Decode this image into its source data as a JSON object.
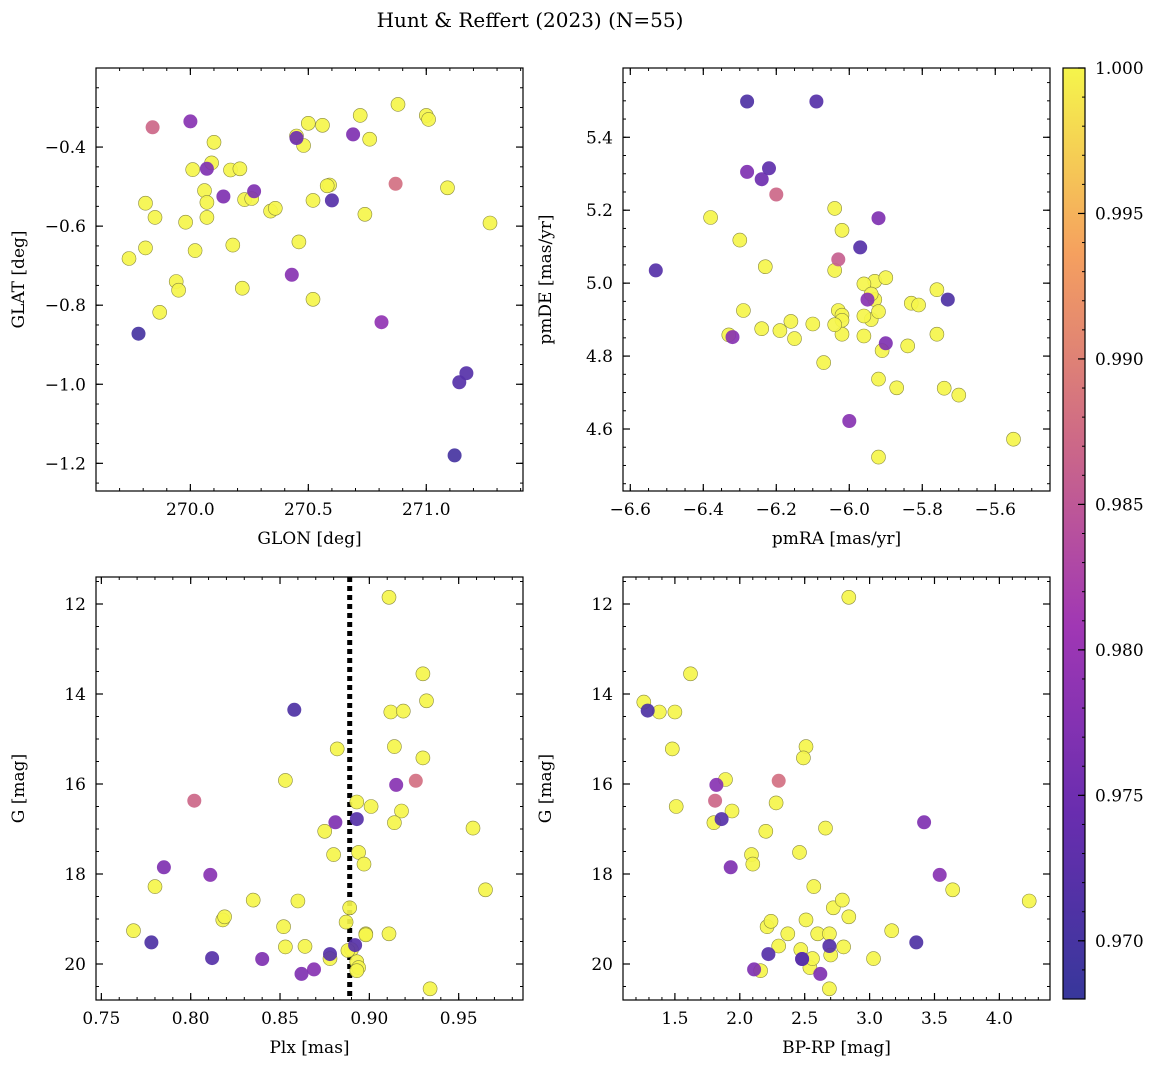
{
  "title": "Hunt & Reffert (2023) (N=55)",
  "colorbar": {
    "min": 0.968,
    "max": 1.0,
    "ticks": [
      0.97,
      0.975,
      0.98,
      0.985,
      0.99,
      0.995,
      1.0
    ],
    "tick_labels": [
      "0.970",
      "0.975",
      "0.980",
      "0.985",
      "0.990",
      "0.995",
      "1.000"
    ],
    "colormap": "plasma"
  },
  "chart_data": [
    {
      "id": "glon-glat",
      "type": "scatter",
      "xlabel": "GLON [deg]",
      "ylabel": "GLAT [deg]",
      "xlim": [
        269.6,
        271.41
      ],
      "ylim": [
        -1.27,
        -0.2
      ],
      "yinvert": false,
      "xticks": [
        270.0,
        270.5,
        271.0
      ],
      "xtick_labels": [
        "270.0",
        "270.5",
        "271.0"
      ],
      "yticks": [
        -1.2,
        -1.0,
        -0.8,
        -0.6,
        -0.4
      ],
      "ytick_labels": [
        "−1.2",
        "−1.0",
        "−0.8",
        "−0.6",
        "−0.4"
      ],
      "x_minor": 0.1,
      "y_minor": 0.05,
      "points": [
        [
          269.84,
          -0.35,
          0.987
        ],
        [
          270.0,
          -0.335,
          0.978
        ],
        [
          270.07,
          -0.455,
          0.977
        ],
        [
          270.14,
          -0.525,
          0.977
        ],
        [
          270.27,
          -0.512,
          0.977
        ],
        [
          270.45,
          -0.377,
          0.975
        ],
        [
          270.6,
          -0.535,
          0.972
        ],
        [
          270.69,
          -0.368,
          0.977
        ],
        [
          270.87,
          -0.493,
          0.988
        ],
        [
          269.78,
          -0.872,
          0.97
        ],
        [
          270.43,
          -0.723,
          0.978
        ],
        [
          270.81,
          -0.843,
          0.979
        ],
        [
          271.12,
          -1.18,
          0.97
        ],
        [
          271.14,
          -0.995,
          0.972
        ],
        [
          271.17,
          -0.972,
          0.972
        ],
        [
          269.74,
          -0.682,
          1.0
        ],
        [
          269.81,
          -0.655,
          1.0
        ],
        [
          269.81,
          -0.542,
          1.0
        ],
        [
          269.85,
          -0.578,
          1.0
        ],
        [
          269.87,
          -0.818,
          1.0
        ],
        [
          269.94,
          -0.74,
          1.0
        ],
        [
          269.95,
          -0.762,
          1.0
        ],
        [
          269.98,
          -0.59,
          1.0
        ],
        [
          270.01,
          -0.457,
          1.0
        ],
        [
          270.02,
          -0.662,
          1.0
        ],
        [
          270.06,
          -0.51,
          1.0
        ],
        [
          270.07,
          -0.54,
          1.0
        ],
        [
          270.07,
          -0.578,
          1.0
        ],
        [
          270.09,
          -0.44,
          1.0
        ],
        [
          270.1,
          -0.388,
          1.0
        ],
        [
          270.17,
          -0.458,
          1.0
        ],
        [
          270.18,
          -0.648,
          1.0
        ],
        [
          270.21,
          -0.455,
          1.0
        ],
        [
          270.22,
          -0.757,
          1.0
        ],
        [
          270.23,
          -0.533,
          1.0
        ],
        [
          270.26,
          -0.53,
          1.0
        ],
        [
          270.34,
          -0.562,
          1.0
        ],
        [
          270.36,
          -0.555,
          1.0
        ],
        [
          270.45,
          -0.372,
          1.0
        ],
        [
          270.46,
          -0.64,
          1.0
        ],
        [
          270.48,
          -0.396,
          1.0
        ],
        [
          270.5,
          -0.34,
          1.0
        ],
        [
          270.52,
          -0.535,
          1.0
        ],
        [
          270.52,
          -0.785,
          1.0
        ],
        [
          270.56,
          -0.345,
          1.0
        ],
        [
          270.59,
          -0.496,
          1.0
        ],
        [
          270.72,
          -0.32,
          1.0
        ],
        [
          270.74,
          -0.57,
          1.0
        ],
        [
          270.76,
          -0.38,
          1.0
        ],
        [
          270.88,
          -0.292,
          1.0
        ],
        [
          271.0,
          -0.32,
          1.0
        ],
        [
          271.01,
          -0.33,
          1.0
        ],
        [
          271.09,
          -0.503,
          1.0
        ],
        [
          271.27,
          -0.592,
          1.0
        ],
        [
          270.58,
          -0.498,
          1.0
        ]
      ]
    },
    {
      "id": "pm",
      "type": "scatter",
      "xlabel": "pmRA [mas/yr]",
      "ylabel": "pmDE [mas/yr]",
      "xlim": [
        -6.62,
        -5.45
      ],
      "ylim": [
        4.43,
        5.59
      ],
      "yinvert": false,
      "xticks": [
        -6.6,
        -6.4,
        -6.2,
        -6.0,
        -5.8,
        -5.6
      ],
      "xtick_labels": [
        "−6.6",
        "−6.4",
        "−6.2",
        "−6.0",
        "−5.8",
        "−5.6"
      ],
      "yticks": [
        4.6,
        4.8,
        5.0,
        5.2,
        5.4
      ],
      "ytick_labels": [
        "4.6",
        "4.8",
        "5.0",
        "5.2",
        "5.4"
      ],
      "x_minor": 0.05,
      "y_minor": 0.05,
      "points": [
        [
          -6.28,
          5.498,
          0.971
        ],
        [
          -6.09,
          5.498,
          0.972
        ],
        [
          -6.22,
          5.315,
          0.973
        ],
        [
          -6.28,
          5.305,
          0.977
        ],
        [
          -6.24,
          5.285,
          0.975
        ],
        [
          -6.2,
          5.243,
          0.987
        ],
        [
          -5.92,
          5.178,
          0.977
        ],
        [
          -5.97,
          5.098,
          0.972
        ],
        [
          -6.03,
          5.065,
          0.986
        ],
        [
          -6.53,
          5.035,
          0.972
        ],
        [
          -5.73,
          4.955,
          0.971
        ],
        [
          -5.95,
          4.955,
          0.978
        ],
        [
          -5.9,
          4.835,
          0.977
        ],
        [
          -6.32,
          4.852,
          0.978
        ],
        [
          -6.0,
          4.622,
          0.978
        ],
        [
          -6.38,
          5.18,
          1.0
        ],
        [
          -6.3,
          5.118,
          1.0
        ],
        [
          -6.23,
          5.045,
          1.0
        ],
        [
          -6.04,
          5.205,
          1.0
        ],
        [
          -6.02,
          5.145,
          1.0
        ],
        [
          -6.04,
          5.035,
          1.0
        ],
        [
          -5.93,
          5.005,
          1.0
        ],
        [
          -5.96,
          4.998,
          1.0
        ],
        [
          -5.9,
          5.015,
          1.0
        ],
        [
          -5.93,
          4.955,
          1.0
        ],
        [
          -5.94,
          4.97,
          1.0
        ],
        [
          -5.94,
          4.9,
          1.0
        ],
        [
          -5.96,
          4.91,
          1.0
        ],
        [
          -5.92,
          4.922,
          1.0
        ],
        [
          -5.91,
          4.815,
          1.0
        ],
        [
          -6.03,
          4.925,
          1.0
        ],
        [
          -6.02,
          4.912,
          1.0
        ],
        [
          -6.02,
          4.898,
          1.0
        ],
        [
          -6.02,
          4.86,
          1.0
        ],
        [
          -6.04,
          4.886,
          1.0
        ],
        [
          -6.1,
          4.888,
          1.0
        ],
        [
          -6.07,
          4.782,
          1.0
        ],
        [
          -5.96,
          4.855,
          1.0
        ],
        [
          -6.29,
          4.925,
          1.0
        ],
        [
          -6.24,
          4.875,
          1.0
        ],
        [
          -6.19,
          4.87,
          1.0
        ],
        [
          -6.16,
          4.895,
          1.0
        ],
        [
          -6.15,
          4.848,
          1.0
        ],
        [
          -6.33,
          4.858,
          1.0
        ],
        [
          -5.84,
          4.828,
          1.0
        ],
        [
          -5.83,
          4.945,
          1.0
        ],
        [
          -5.81,
          4.94,
          1.0
        ],
        [
          -5.76,
          4.982,
          1.0
        ],
        [
          -5.76,
          4.86,
          1.0
        ],
        [
          -5.74,
          4.712,
          1.0
        ],
        [
          -5.7,
          4.693,
          1.0
        ],
        [
          -5.87,
          4.713,
          1.0
        ],
        [
          -5.92,
          4.737,
          1.0
        ],
        [
          -5.92,
          4.523,
          1.0
        ],
        [
          -5.55,
          4.572,
          1.0
        ]
      ]
    },
    {
      "id": "plx-g",
      "type": "scatter",
      "xlabel": "Plx [mas]",
      "ylabel": "G [mag]",
      "xlim": [
        0.747,
        0.986
      ],
      "ylim": [
        20.8,
        11.4
      ],
      "yinvert": true,
      "xticks": [
        0.75,
        0.8,
        0.85,
        0.9,
        0.95
      ],
      "xtick_labels": [
        "0.75",
        "0.80",
        "0.85",
        "0.90",
        "0.95"
      ],
      "yticks": [
        12,
        14,
        16,
        18,
        20
      ],
      "ytick_labels": [
        "12",
        "14",
        "16",
        "18",
        "20"
      ],
      "x_minor": 0.01,
      "y_minor": 0.5,
      "vline": 0.889,
      "points": [
        [
          0.858,
          14.35,
          0.971
        ],
        [
          0.802,
          16.37,
          0.987
        ],
        [
          0.915,
          16.02,
          0.978
        ],
        [
          0.926,
          15.93,
          0.988
        ],
        [
          0.881,
          16.85,
          0.977
        ],
        [
          0.893,
          16.78,
          0.972
        ],
        [
          0.785,
          17.85,
          0.977
        ],
        [
          0.811,
          18.02,
          0.978
        ],
        [
          0.778,
          19.52,
          0.971
        ],
        [
          0.812,
          19.87,
          0.972
        ],
        [
          0.84,
          19.89,
          0.977
        ],
        [
          0.862,
          20.22,
          0.977
        ],
        [
          0.869,
          20.12,
          0.978
        ],
        [
          0.878,
          19.78,
          0.972
        ],
        [
          0.892,
          19.58,
          0.972
        ],
        [
          0.911,
          11.85,
          1.0
        ],
        [
          0.93,
          13.55,
          1.0
        ],
        [
          0.932,
          14.15,
          1.0
        ],
        [
          0.912,
          14.4,
          1.0
        ],
        [
          0.919,
          14.38,
          1.0
        ],
        [
          0.914,
          15.17,
          1.0
        ],
        [
          0.882,
          15.22,
          1.0
        ],
        [
          0.853,
          15.92,
          1.0
        ],
        [
          0.93,
          15.42,
          1.0
        ],
        [
          0.918,
          16.6,
          1.0
        ],
        [
          0.901,
          16.5,
          1.0
        ],
        [
          0.893,
          16.4,
          1.0
        ],
        [
          0.914,
          16.86,
          1.0
        ],
        [
          0.875,
          17.05,
          1.0
        ],
        [
          0.88,
          17.57,
          1.0
        ],
        [
          0.894,
          17.52,
          1.0
        ],
        [
          0.897,
          17.78,
          1.0
        ],
        [
          0.958,
          16.98,
          1.0
        ],
        [
          0.965,
          18.35,
          1.0
        ],
        [
          0.78,
          18.28,
          1.0
        ],
        [
          0.768,
          19.26,
          1.0
        ],
        [
          0.818,
          19.02,
          1.0
        ],
        [
          0.819,
          18.95,
          1.0
        ],
        [
          0.835,
          18.58,
          1.0
        ],
        [
          0.86,
          18.6,
          1.0
        ],
        [
          0.852,
          19.17,
          1.0
        ],
        [
          0.853,
          19.62,
          1.0
        ],
        [
          0.864,
          19.61,
          1.0
        ],
        [
          0.878,
          19.88,
          1.0
        ],
        [
          0.887,
          19.07,
          1.0
        ],
        [
          0.889,
          18.75,
          1.0
        ],
        [
          0.89,
          19.68,
          1.0
        ],
        [
          0.888,
          19.7,
          1.0
        ],
        [
          0.893,
          19.95,
          1.0
        ],
        [
          0.894,
          20.08,
          1.0
        ],
        [
          0.893,
          20.15,
          1.0
        ],
        [
          0.898,
          19.33,
          1.0
        ],
        [
          0.898,
          19.35,
          1.0
        ],
        [
          0.911,
          19.33,
          1.0
        ],
        [
          0.934,
          20.55,
          1.0
        ]
      ]
    },
    {
      "id": "color-g",
      "type": "scatter",
      "xlabel": "BP-RP [mag]",
      "ylabel": "G [mag]",
      "xlim": [
        1.1,
        4.39
      ],
      "ylim": [
        20.8,
        11.4
      ],
      "yinvert": true,
      "xticks": [
        1.5,
        2.0,
        2.5,
        3.0,
        3.5,
        4.0
      ],
      "xtick_labels": [
        "1.5",
        "2.0",
        "2.5",
        "3.0",
        "3.5",
        "4.0"
      ],
      "yticks": [
        12,
        14,
        16,
        18,
        20
      ],
      "ytick_labels": [
        "12",
        "14",
        "16",
        "18",
        "20"
      ],
      "x_minor": 0.1,
      "y_minor": 0.5,
      "points": [
        [
          1.29,
          14.37,
          0.971
        ],
        [
          1.81,
          16.37,
          0.987
        ],
        [
          1.82,
          16.02,
          0.978
        ],
        [
          2.3,
          15.93,
          0.988
        ],
        [
          1.86,
          16.78,
          0.972
        ],
        [
          1.93,
          17.85,
          0.977
        ],
        [
          3.42,
          16.85,
          0.977
        ],
        [
          3.54,
          18.02,
          0.978
        ],
        [
          3.36,
          19.52,
          0.971
        ],
        [
          2.22,
          19.78,
          0.972
        ],
        [
          2.11,
          20.12,
          0.977
        ],
        [
          2.62,
          20.22,
          0.977
        ],
        [
          2.69,
          19.6,
          0.972
        ],
        [
          2.48,
          19.89,
          0.972
        ],
        [
          2.48,
          19.89,
          0.978
        ],
        [
          1.26,
          14.18,
          1.0
        ],
        [
          1.38,
          14.4,
          1.0
        ],
        [
          1.5,
          14.4,
          1.0
        ],
        [
          1.62,
          13.55,
          1.0
        ],
        [
          1.48,
          15.22,
          1.0
        ],
        [
          1.51,
          16.5,
          1.0
        ],
        [
          1.89,
          15.9,
          1.0
        ],
        [
          1.94,
          16.6,
          1.0
        ],
        [
          1.8,
          16.86,
          1.0
        ],
        [
          2.28,
          16.42,
          1.0
        ],
        [
          2.2,
          17.05,
          1.0
        ],
        [
          2.09,
          17.57,
          1.0
        ],
        [
          2.1,
          17.78,
          1.0
        ],
        [
          2.51,
          15.17,
          1.0
        ],
        [
          2.49,
          15.42,
          1.0
        ],
        [
          2.66,
          16.98,
          1.0
        ],
        [
          2.46,
          17.52,
          1.0
        ],
        [
          2.57,
          18.28,
          1.0
        ],
        [
          2.84,
          11.85,
          1.0
        ],
        [
          2.21,
          19.17,
          1.0
        ],
        [
          2.24,
          19.05,
          1.0
        ],
        [
          2.37,
          19.33,
          1.0
        ],
        [
          2.3,
          19.6,
          1.0
        ],
        [
          2.16,
          20.15,
          1.0
        ],
        [
          2.47,
          19.68,
          1.0
        ],
        [
          2.51,
          19.02,
          1.0
        ],
        [
          2.54,
          20.08,
          1.0
        ],
        [
          2.56,
          19.88,
          1.0
        ],
        [
          2.6,
          19.33,
          1.0
        ],
        [
          2.69,
          19.33,
          1.0
        ],
        [
          2.7,
          19.8,
          1.0
        ],
        [
          2.72,
          18.75,
          1.0
        ],
        [
          2.79,
          18.58,
          1.0
        ],
        [
          2.84,
          18.95,
          1.0
        ],
        [
          2.8,
          19.62,
          1.0
        ],
        [
          2.69,
          20.55,
          1.0
        ],
        [
          3.03,
          19.88,
          1.0
        ],
        [
          3.17,
          19.26,
          1.0
        ],
        [
          3.64,
          18.35,
          1.0
        ],
        [
          4.23,
          18.6,
          1.0
        ]
      ]
    }
  ]
}
